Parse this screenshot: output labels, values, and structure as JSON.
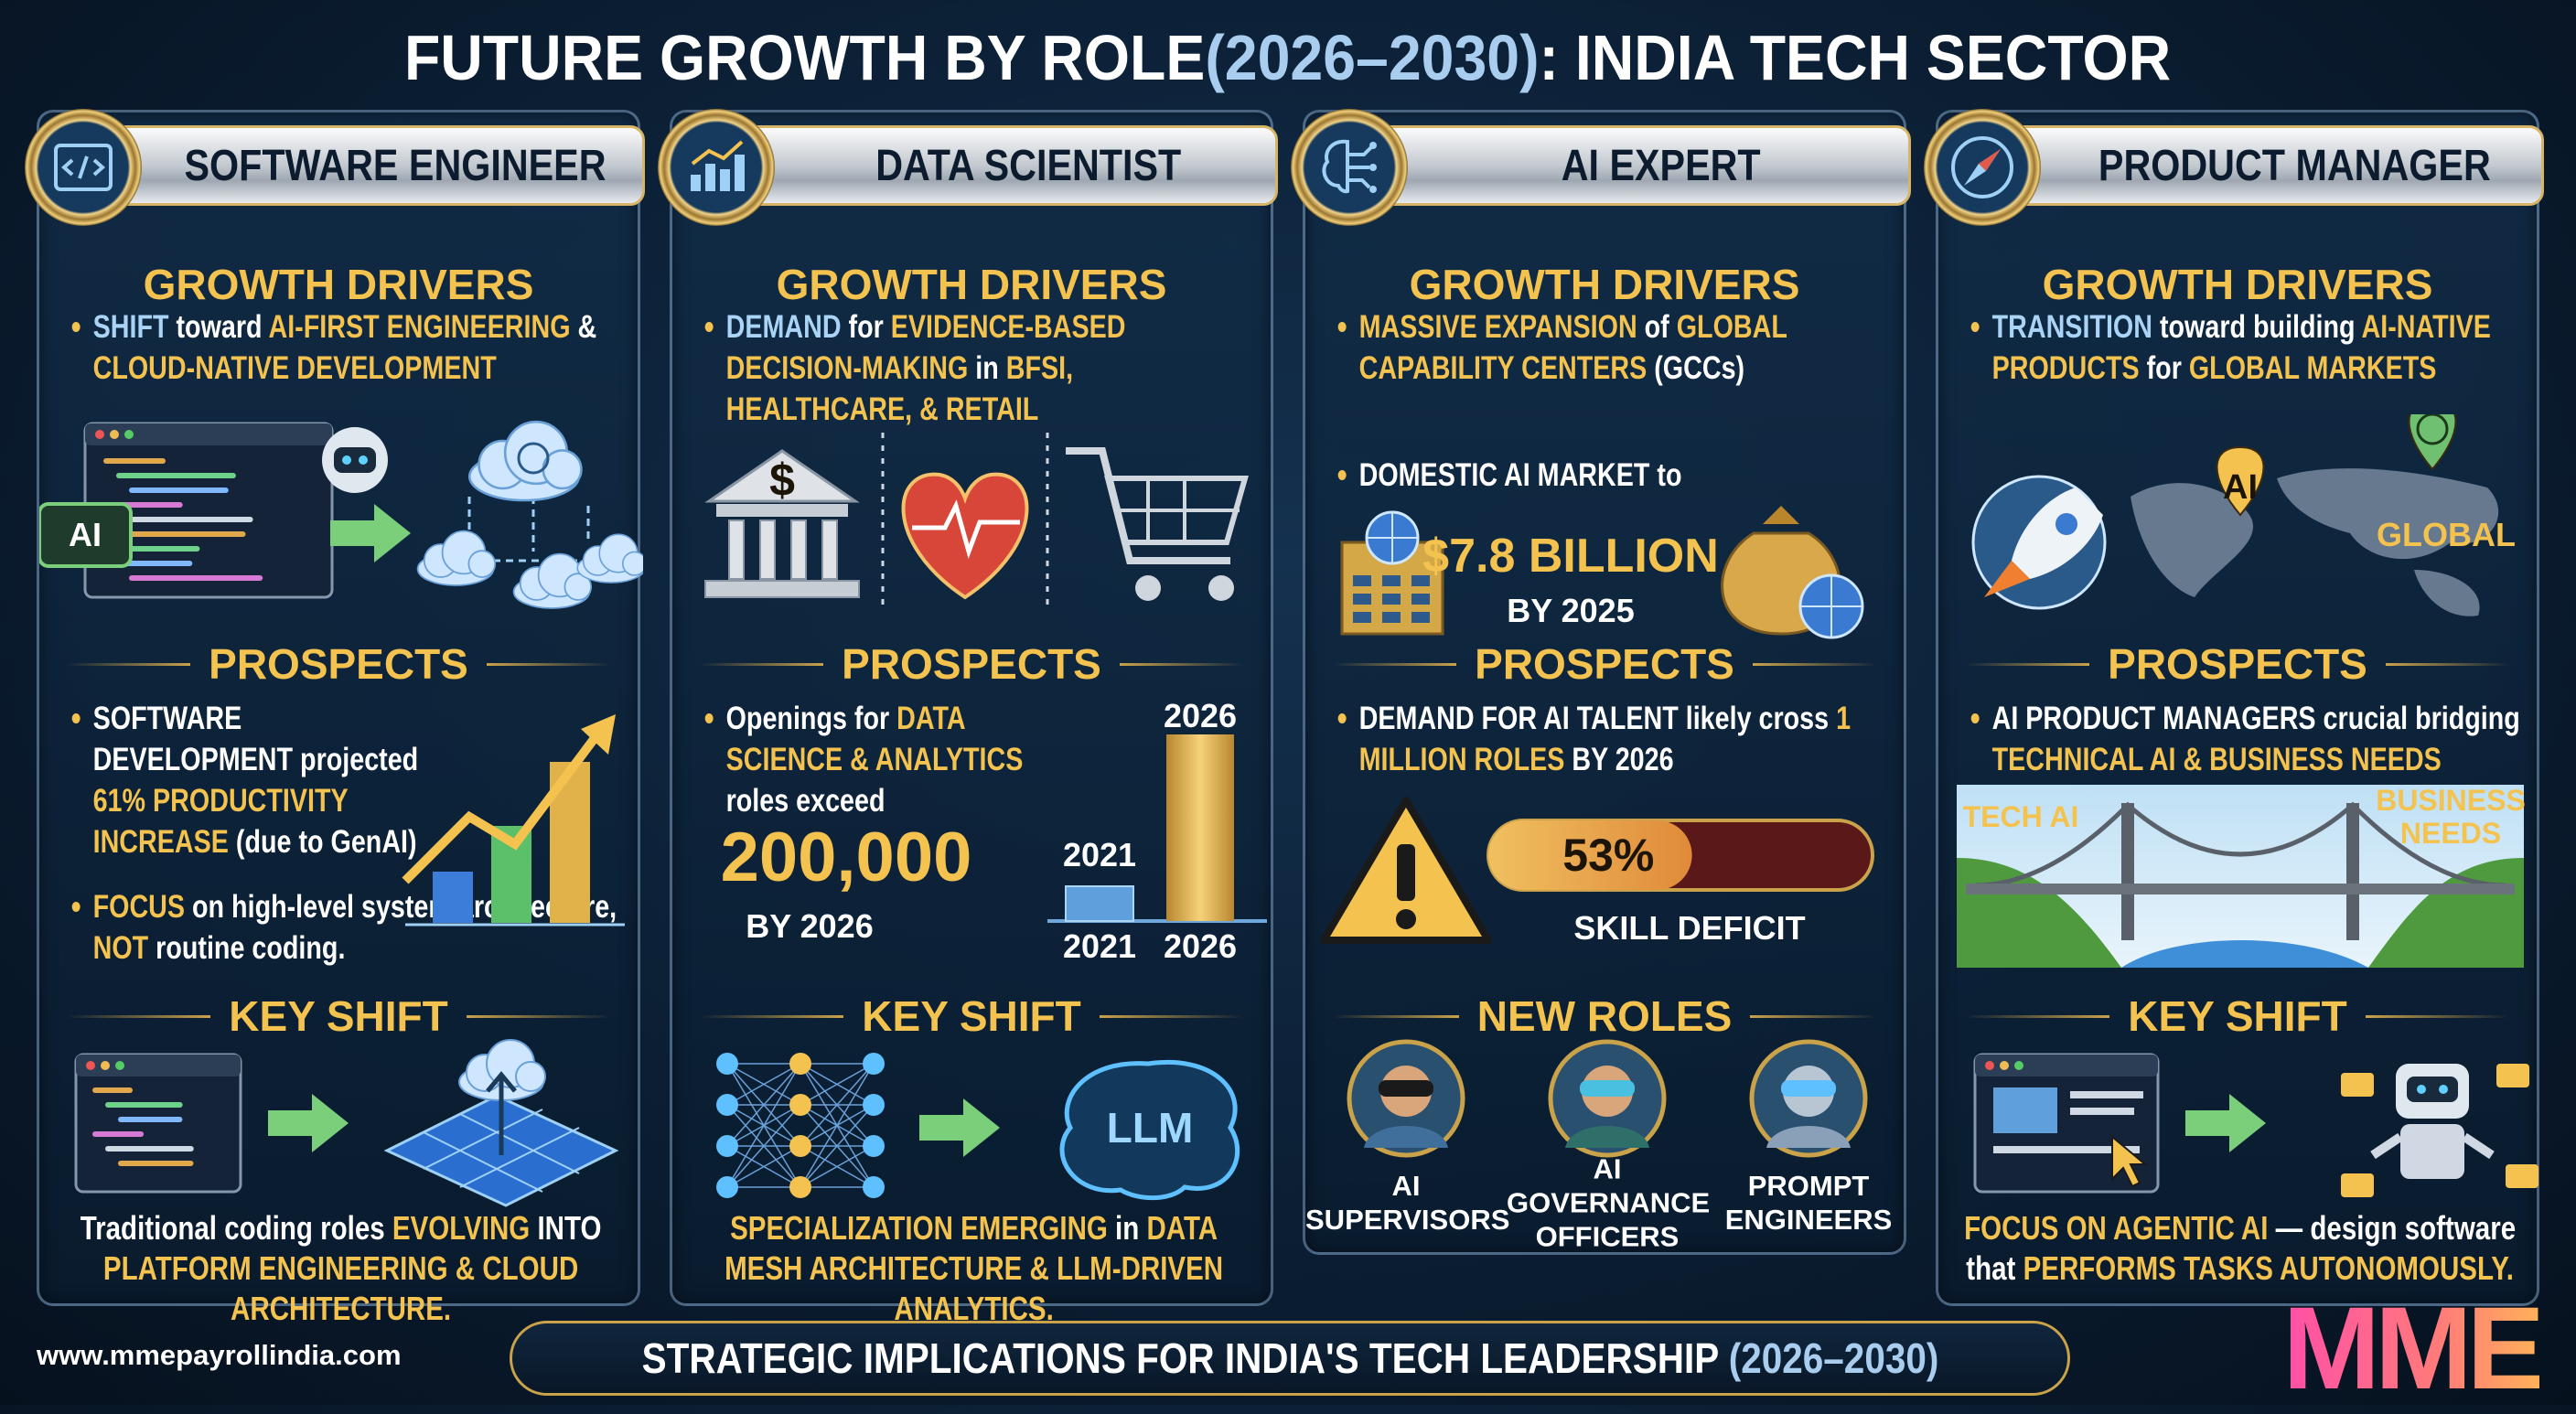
{
  "title": [
    {
      "text": "FUTURE GROWTH BY ROLE ",
      "color": "#ffffff"
    },
    {
      "text": "(2026–2030)",
      "color": "#a9cdee"
    },
    {
      "text": ": INDIA TECH SECTOR",
      "color": "#ffffff"
    }
  ],
  "columns": [
    {
      "role": "SOFTWARE ENGINEER",
      "drivers_heading": "GROWTH DRIVERS",
      "drivers": [
        [
          {
            "text": "SHIFT",
            "color": "#a9d4f5"
          },
          {
            "text": " toward ",
            "color": "#ffffff"
          },
          {
            "text": "AI-FIRST ENGINEERING",
            "color": "#f3c24f"
          },
          {
            "text": " & ",
            "color": "#ffffff"
          },
          {
            "text": "CLOUD-NATIVE DEVELOPMENT",
            "color": "#f3c24f"
          }
        ]
      ],
      "drivers_art_labels": [
        "AI"
      ],
      "prospects_heading": "PROSPECTS",
      "prospects": [
        [
          {
            "text": "SOFTWARE DEVELOPMENT",
            "color": "#ffffff"
          },
          {
            "text": " projected ",
            "color": "#ffffff"
          },
          {
            "text": "61%",
            "color": "#f3c24f"
          },
          {
            "text": " PRODUCTIVITY INCREASE",
            "color": "#f3c24f"
          },
          {
            "text": " (due to GenAI)",
            "color": "#ffffff"
          }
        ],
        [
          {
            "text": "FOCUS",
            "color": "#f3c24f"
          },
          {
            "text": " on high-level system architecture, ",
            "color": "#ffffff"
          },
          {
            "text": "NOT",
            "color": "#f3c24f"
          },
          {
            "text": " routine coding.",
            "color": "#ffffff"
          }
        ]
      ],
      "shift_heading": "KEY SHIFT",
      "shift": [
        {
          "text": "Traditional coding roles ",
          "color": "#ffffff"
        },
        {
          "text": "EVOLVING",
          "color": "#f3c24f"
        },
        {
          "text": " INTO ",
          "color": "#ffffff"
        },
        {
          "text": "PLATFORM ENGINEERING",
          "color": "#f3c24f"
        },
        {
          "text": " & CLOUD ARCHITECTURE.",
          "color": "#f3c24f"
        }
      ]
    },
    {
      "role": "DATA SCIENTIST",
      "drivers_heading": "GROWTH DRIVERS",
      "drivers": [
        [
          {
            "text": "DEMAND",
            "color": "#a9d4f5"
          },
          {
            "text": " for ",
            "color": "#ffffff"
          },
          {
            "text": "EVIDENCE-BASED DECISION-MAKING",
            "color": "#f3c24f"
          },
          {
            "text": " in ",
            "color": "#ffffff"
          },
          {
            "text": "BFSI, HEALTHCARE, & RETAIL",
            "color": "#f3c24f"
          }
        ]
      ],
      "drivers_art_labels": [
        "$"
      ],
      "prospects_heading": "PROSPECTS",
      "prospects": [
        [
          {
            "text": "Openings for ",
            "color": "#ffffff"
          },
          {
            "text": "DATA SCIENCE & ANALYTICS",
            "color": "#f3c24f"
          },
          {
            "text": " roles exceed",
            "color": "#ffffff"
          }
        ]
      ],
      "big_number": "200,000",
      "big_number_sub": "BY 2026",
      "chart": {
        "top_labels": [
          "2021",
          "2026"
        ],
        "axis_labels": [
          "2021",
          "2026"
        ]
      },
      "shift_heading": "KEY SHIFT",
      "shift_art_labels": [
        "LLM"
      ],
      "shift": [
        {
          "text": "SPECIALIZATION EMERGING",
          "color": "#f3c24f"
        },
        {
          "text": " in ",
          "color": "#ffffff"
        },
        {
          "text": "DATA MESH ARCHITECTURE & LLM-DRIVEN ANALYTICS.",
          "color": "#f3c24f"
        }
      ]
    },
    {
      "role": "AI EXPERT",
      "drivers_heading": "GROWTH DRIVERS",
      "drivers": [
        [
          {
            "text": "MASSIVE EXPANSION",
            "color": "#f3c24f"
          },
          {
            "text": " of ",
            "color": "#ffffff"
          },
          {
            "text": "GLOBAL CAPABILITY CENTERS",
            "color": "#f3c24f"
          },
          {
            "text": " (GCCs)",
            "color": "#ffffff"
          }
        ],
        [
          {
            "text": "DOMESTIC AI MARKET",
            "color": "#ffffff"
          },
          {
            "text": " to",
            "color": "#ffffff"
          }
        ]
      ],
      "market": {
        "value": "$7.8 BILLION",
        "sub": "BY 2025"
      },
      "prospects_heading": "PROSPECTS",
      "prospects": [
        [
          {
            "text": "DEMAND FOR AI TALENT",
            "color": "#ffffff"
          },
          {
            "text": " likely cross ",
            "color": "#ffffff"
          },
          {
            "text": "1 MILLION ROLES",
            "color": "#f3c24f"
          },
          {
            "text": " BY 2026",
            "color": "#ffffff"
          }
        ]
      ],
      "skill_deficit": {
        "value": 53,
        "label": "53%",
        "caption": "SKILL DEFICIT"
      },
      "roles_heading": "NEW ROLES",
      "roles": [
        "AI SUPERVISORS",
        "AI GOVERNANCE OFFICERS",
        "PROMPT ENGINEERS"
      ]
    },
    {
      "role": "PRODUCT MANAGER",
      "drivers_heading": "GROWTH DRIVERS",
      "drivers": [
        [
          {
            "text": "TRANSITION",
            "color": "#a9d4f5"
          },
          {
            "text": " toward building ",
            "color": "#ffffff"
          },
          {
            "text": "AI-NATIVE PRODUCTS",
            "color": "#f3c24f"
          },
          {
            "text": " for ",
            "color": "#ffffff"
          },
          {
            "text": "GLOBAL MARKETS",
            "color": "#f3c24f"
          }
        ]
      ],
      "drivers_art_labels": [
        "AI",
        "GLOBAL"
      ],
      "prospects_heading": "PROSPECTS",
      "prospects": [
        [
          {
            "text": "AI PRODUCT MANAGERS",
            "color": "#ffffff"
          },
          {
            "text": " crucial bridging ",
            "color": "#ffffff"
          },
          {
            "text": "TECHNICAL AI & BUSINESS NEEDS",
            "color": "#f3c24f"
          }
        ]
      ],
      "prospects_art_labels": [
        "TECH AI",
        "BUSINESS NEEDS"
      ],
      "shift_heading": "KEY SHIFT",
      "shift": [
        {
          "text": "FOCUS ON AGENTIC AI",
          "color": "#f3c24f"
        },
        {
          "text": " — design software that ",
          "color": "#ffffff"
        },
        {
          "text": "PERFORMS TASKS AUTONOMOUSLY.",
          "color": "#f3c24f"
        }
      ]
    }
  ],
  "footer": {
    "website": "www.mmepayrollindia.com",
    "banner": [
      {
        "text": "STRATEGIC IMPLICATIONS FOR INDIA'S TECH LEADERSHIP ",
        "color": "#ffffff"
      },
      {
        "text": "(2026–2030)",
        "color": "#a9cdee"
      }
    ],
    "logo": "MME"
  }
}
